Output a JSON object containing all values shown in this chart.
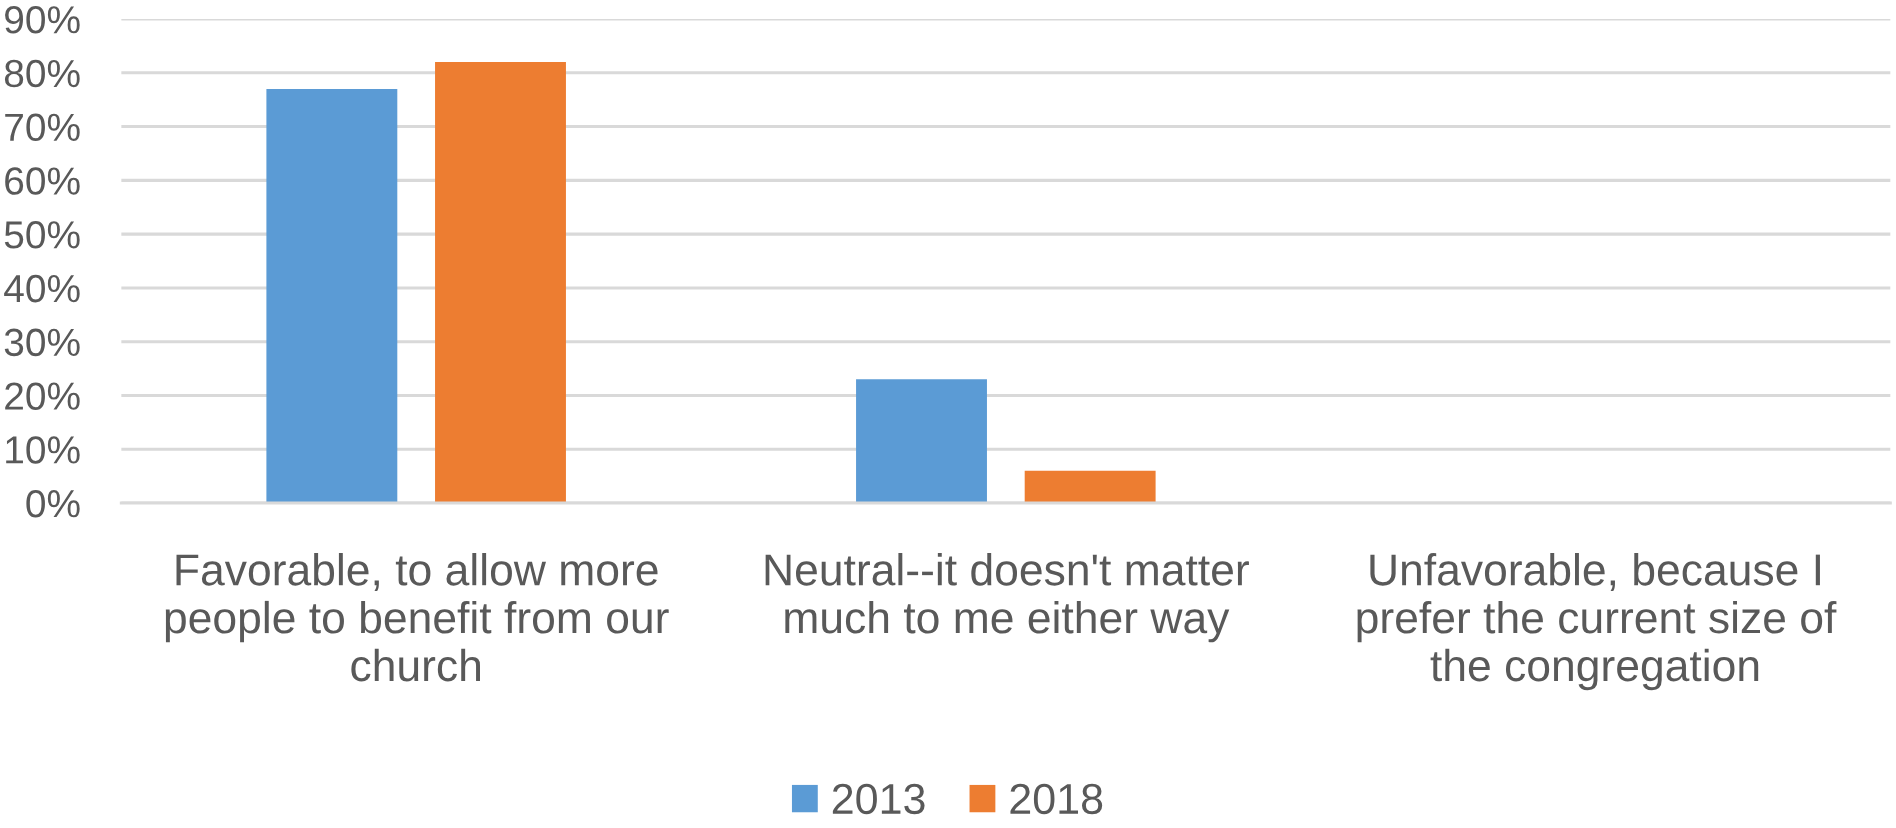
{
  "chart_data": {
    "type": "bar",
    "categories": [
      "Favorable, to allow more people to benefit from our church",
      "Neutral--it doesn't matter much to me either way",
      "Unfavorable, because I prefer the current size of the congregation"
    ],
    "series": [
      {
        "name": "2013",
        "color": "#5b9bd5",
        "values": [
          77,
          23,
          0
        ]
      },
      {
        "name": "2018",
        "color": "#ed7d31",
        "values": [
          82,
          6,
          0
        ]
      }
    ],
    "ylim": [
      0,
      90
    ],
    "yticks": [
      {
        "value": 0,
        "label": "0%"
      },
      {
        "value": 10,
        "label": "10%"
      },
      {
        "value": 20,
        "label": "20%"
      },
      {
        "value": 30,
        "label": "30%"
      },
      {
        "value": 40,
        "label": "40%"
      },
      {
        "value": 50,
        "label": "50%"
      },
      {
        "value": 60,
        "label": "60%"
      },
      {
        "value": 70,
        "label": "70%"
      },
      {
        "value": 80,
        "label": "80%"
      },
      {
        "value": 90,
        "label": "90%"
      }
    ],
    "grid": "y",
    "legend": "bottom"
  }
}
